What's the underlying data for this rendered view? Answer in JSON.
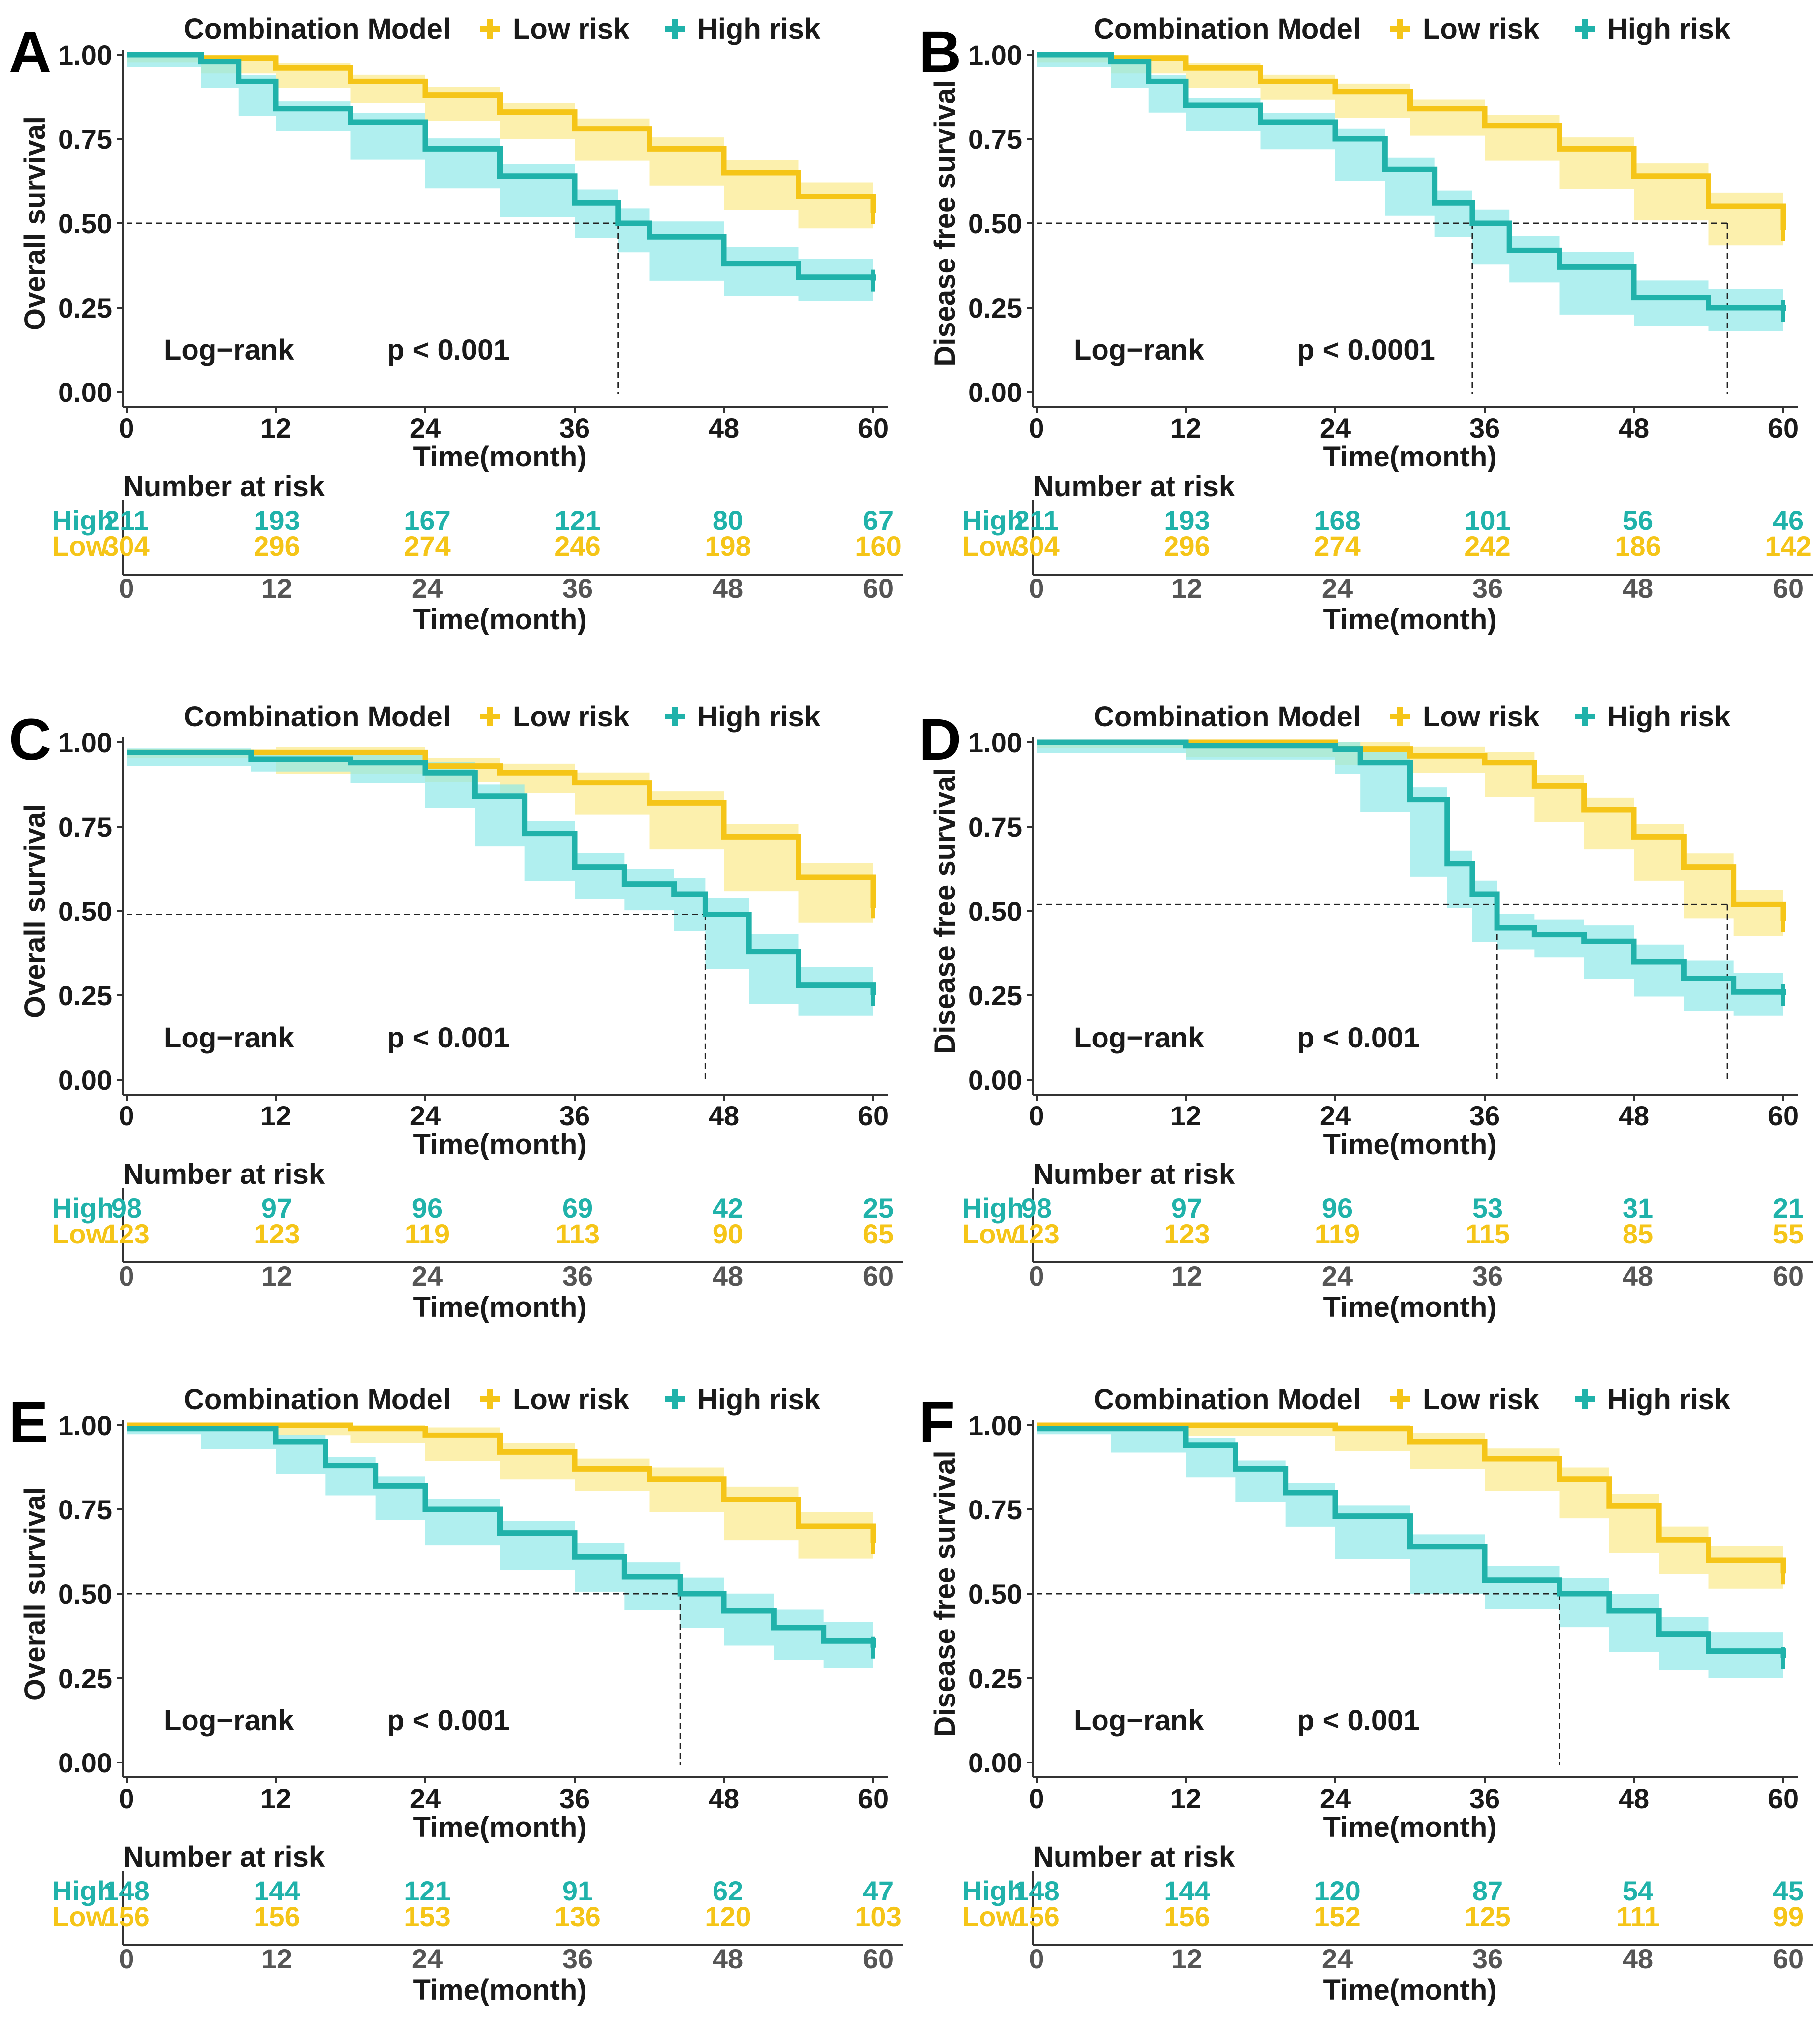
{
  "figure": {
    "colors": {
      "low": "#F5C518",
      "high": "#20B2AA",
      "low_band": "#FBE98A",
      "high_band": "#8FE8E8",
      "axis": "#333333"
    }
  },
  "chart_data": [
    {
      "panel": "A",
      "type": "line",
      "legend_title": "Combination Model",
      "legend_labels": [
        "Low risk",
        "High risk"
      ],
      "ylabel": "Overall survival",
      "xlabel": "Time(month)",
      "yticks": [
        "0.00",
        "0.25",
        "0.50",
        "0.75",
        "1.00"
      ],
      "xticks": [
        "0",
        "12",
        "24",
        "36",
        "48",
        "60"
      ],
      "xlim": [
        0,
        60
      ],
      "ylim": [
        0,
        1
      ],
      "test_label": "Log−rank",
      "p_text": "p < 0.001",
      "median_high": 39.5,
      "median_low": null,
      "median_level": 0.5,
      "series": [
        {
          "name": "Low risk",
          "x": [
            0,
            6,
            12,
            18,
            24,
            30,
            36,
            42,
            48,
            54,
            60
          ],
          "y": [
            1.0,
            0.99,
            0.96,
            0.92,
            0.88,
            0.83,
            0.78,
            0.72,
            0.65,
            0.58,
            0.53
          ]
        },
        {
          "name": "High risk",
          "x": [
            0,
            6,
            9,
            12,
            18,
            24,
            30,
            36,
            39.5,
            42,
            48,
            54,
            60
          ],
          "y": [
            1.0,
            0.98,
            0.92,
            0.84,
            0.8,
            0.72,
            0.64,
            0.56,
            0.5,
            0.46,
            0.38,
            0.34,
            0.33
          ]
        }
      ],
      "risk_table": {
        "title": "Number at risk",
        "xlabel": "Time(month)",
        "xticks": [
          "0",
          "12",
          "24",
          "36",
          "48",
          "60"
        ],
        "rows": [
          {
            "label": "High",
            "values": [
              211,
              193,
              167,
              121,
              80,
              67
            ]
          },
          {
            "label": "Low",
            "values": [
              304,
              296,
              274,
              246,
              198,
              160
            ]
          }
        ]
      }
    },
    {
      "panel": "B",
      "type": "line",
      "legend_title": "Combination Model",
      "legend_labels": [
        "Low risk",
        "High risk"
      ],
      "ylabel": "Disease free survival",
      "xlabel": "Time(month)",
      "yticks": [
        "0.00",
        "0.25",
        "0.50",
        "0.75",
        "1.00"
      ],
      "xticks": [
        "0",
        "12",
        "24",
        "36",
        "48",
        "60"
      ],
      "xlim": [
        0,
        60
      ],
      "ylim": [
        0,
        1
      ],
      "test_label": "Log−rank",
      "p_text": "p < 0.0001",
      "median_high": 35,
      "median_low": 55.5,
      "median_level": 0.5,
      "series": [
        {
          "name": "Low risk",
          "x": [
            0,
            6,
            12,
            18,
            24,
            30,
            36,
            42,
            48,
            54,
            60
          ],
          "y": [
            1.0,
            0.99,
            0.96,
            0.92,
            0.89,
            0.84,
            0.79,
            0.72,
            0.64,
            0.55,
            0.48
          ]
        },
        {
          "name": "High risk",
          "x": [
            0,
            6,
            9,
            12,
            18,
            24,
            28,
            32,
            35,
            38,
            42,
            48,
            54,
            60
          ],
          "y": [
            1.0,
            0.98,
            0.92,
            0.85,
            0.8,
            0.75,
            0.66,
            0.56,
            0.5,
            0.42,
            0.37,
            0.28,
            0.25,
            0.24
          ]
        }
      ],
      "risk_table": {
        "title": "Number at risk",
        "xlabel": "Time(month)",
        "xticks": [
          "0",
          "12",
          "24",
          "36",
          "48",
          "60"
        ],
        "rows": [
          {
            "label": "High",
            "values": [
              211,
              193,
              168,
              101,
              56,
              46
            ]
          },
          {
            "label": "Low",
            "values": [
              304,
              296,
              274,
              242,
              186,
              142
            ]
          }
        ]
      }
    },
    {
      "panel": "C",
      "type": "line",
      "legend_title": "Combination Model",
      "legend_labels": [
        "Low risk",
        "High risk"
      ],
      "ylabel": "Overall survival",
      "xlabel": "Time(month)",
      "yticks": [
        "0.00",
        "0.25",
        "0.50",
        "0.75",
        "1.00"
      ],
      "xticks": [
        "0",
        "12",
        "24",
        "36",
        "48",
        "60"
      ],
      "xlim": [
        0,
        60
      ],
      "ylim": [
        0,
        1
      ],
      "test_label": "Log−rank",
      "p_text": "p < 0.001",
      "median_high": 46.5,
      "median_low": null,
      "median_level": 0.49,
      "series": [
        {
          "name": "Low risk",
          "x": [
            0,
            12,
            24,
            30,
            36,
            42,
            48,
            54,
            60
          ],
          "y": [
            0.97,
            0.97,
            0.93,
            0.91,
            0.88,
            0.82,
            0.72,
            0.6,
            0.51
          ]
        },
        {
          "name": "High risk",
          "x": [
            0,
            10,
            18,
            24,
            28,
            32,
            36,
            40,
            44,
            46.5,
            50,
            54,
            60
          ],
          "y": [
            0.97,
            0.95,
            0.94,
            0.91,
            0.84,
            0.73,
            0.63,
            0.58,
            0.55,
            0.49,
            0.38,
            0.28,
            0.25
          ]
        }
      ],
      "risk_table": {
        "title": "Number at risk",
        "xlabel": "Time(month)",
        "xticks": [
          "0",
          "12",
          "24",
          "36",
          "48",
          "60"
        ],
        "rows": [
          {
            "label": "High",
            "values": [
              98,
              97,
              96,
              69,
              42,
              25
            ]
          },
          {
            "label": "Low",
            "values": [
              123,
              123,
              119,
              113,
              90,
              65
            ]
          }
        ]
      }
    },
    {
      "panel": "D",
      "type": "line",
      "legend_title": "Combination Model",
      "legend_labels": [
        "Low risk",
        "High risk"
      ],
      "ylabel": "Disease free survival",
      "xlabel": "Time(month)",
      "yticks": [
        "0.00",
        "0.25",
        "0.50",
        "0.75",
        "1.00"
      ],
      "xticks": [
        "0",
        "12",
        "24",
        "36",
        "48",
        "60"
      ],
      "xlim": [
        0,
        60
      ],
      "ylim": [
        0,
        1
      ],
      "test_label": "Log−rank",
      "p_text": "p < 0.001",
      "median_high": 37,
      "median_low": 55.5,
      "median_level": 0.52,
      "series": [
        {
          "name": "Low risk",
          "x": [
            0,
            12,
            24,
            30,
            36,
            40,
            44,
            48,
            52,
            56,
            60
          ],
          "y": [
            1.0,
            1.0,
            0.98,
            0.96,
            0.94,
            0.87,
            0.8,
            0.72,
            0.63,
            0.52,
            0.47
          ]
        },
        {
          "name": "High risk",
          "x": [
            0,
            12,
            24,
            26,
            30,
            33,
            35,
            37,
            40,
            44,
            48,
            52,
            56,
            60
          ],
          "y": [
            1.0,
            0.99,
            0.98,
            0.94,
            0.83,
            0.64,
            0.55,
            0.45,
            0.43,
            0.41,
            0.35,
            0.3,
            0.26,
            0.25
          ]
        }
      ],
      "risk_table": {
        "title": "Number at risk",
        "xlabel": "Time(month)",
        "xticks": [
          "0",
          "12",
          "24",
          "36",
          "48",
          "60"
        ],
        "rows": [
          {
            "label": "High",
            "values": [
              98,
              97,
              96,
              53,
              31,
              21
            ]
          },
          {
            "label": "Low",
            "values": [
              123,
              123,
              119,
              115,
              85,
              55
            ]
          }
        ]
      }
    },
    {
      "panel": "E",
      "type": "line",
      "legend_title": "Combination Model",
      "legend_labels": [
        "Low risk",
        "High risk"
      ],
      "ylabel": "Overall survival",
      "xlabel": "Time(month)",
      "yticks": [
        "0.00",
        "0.25",
        "0.50",
        "0.75",
        "1.00"
      ],
      "xticks": [
        "0",
        "12",
        "24",
        "36",
        "48",
        "60"
      ],
      "xlim": [
        0,
        60
      ],
      "ylim": [
        0,
        1
      ],
      "test_label": "Log−rank",
      "p_text": "p < 0.001",
      "median_high": 44.5,
      "median_low": null,
      "median_level": 0.5,
      "series": [
        {
          "name": "Low risk",
          "x": [
            0,
            12,
            18,
            24,
            30,
            36,
            42,
            48,
            54,
            60
          ],
          "y": [
            1.0,
            1.0,
            0.99,
            0.97,
            0.92,
            0.87,
            0.84,
            0.78,
            0.7,
            0.65
          ]
        },
        {
          "name": "High risk",
          "x": [
            0,
            6,
            12,
            16,
            20,
            24,
            30,
            36,
            40,
            44.5,
            48,
            52,
            56,
            60
          ],
          "y": [
            0.99,
            0.99,
            0.95,
            0.88,
            0.82,
            0.75,
            0.68,
            0.61,
            0.55,
            0.5,
            0.45,
            0.4,
            0.36,
            0.34
          ]
        }
      ],
      "risk_table": {
        "title": "Number at risk",
        "xlabel": "Time(month)",
        "xticks": [
          "0",
          "12",
          "24",
          "36",
          "48",
          "60"
        ],
        "rows": [
          {
            "label": "High",
            "values": [
              148,
              144,
              121,
              91,
              62,
              47
            ]
          },
          {
            "label": "Low",
            "values": [
              156,
              156,
              153,
              136,
              120,
              103
            ]
          }
        ]
      }
    },
    {
      "panel": "F",
      "type": "line",
      "legend_title": "Combination Model",
      "legend_labels": [
        "Low risk",
        "High risk"
      ],
      "ylabel": "Disease free survival",
      "xlabel": "Time(month)",
      "yticks": [
        "0.00",
        "0.25",
        "0.50",
        "0.75",
        "1.00"
      ],
      "xticks": [
        "0",
        "12",
        "24",
        "36",
        "48",
        "60"
      ],
      "xlim": [
        0,
        60
      ],
      "ylim": [
        0,
        1
      ],
      "test_label": "Log−rank",
      "p_text": "p < 0.001",
      "median_high": 42,
      "median_low": null,
      "median_level": 0.5,
      "series": [
        {
          "name": "Low risk",
          "x": [
            0,
            12,
            24,
            30,
            36,
            42,
            46,
            50,
            54,
            60
          ],
          "y": [
            1.0,
            1.0,
            0.99,
            0.95,
            0.9,
            0.84,
            0.76,
            0.66,
            0.6,
            0.56
          ]
        },
        {
          "name": "High risk",
          "x": [
            0,
            6,
            12,
            16,
            20,
            24,
            30,
            36,
            42,
            46,
            50,
            54,
            60
          ],
          "y": [
            0.99,
            0.99,
            0.94,
            0.87,
            0.8,
            0.73,
            0.64,
            0.54,
            0.5,
            0.45,
            0.38,
            0.33,
            0.31
          ]
        }
      ],
      "risk_table": {
        "title": "Number at risk",
        "xlabel": "Time(month)",
        "xticks": [
          "0",
          "12",
          "24",
          "36",
          "48",
          "60"
        ],
        "rows": [
          {
            "label": "High",
            "values": [
              148,
              144,
              120,
              87,
              54,
              45
            ]
          },
          {
            "label": "Low",
            "values": [
              156,
              156,
              152,
              125,
              111,
              99
            ]
          }
        ]
      }
    }
  ]
}
